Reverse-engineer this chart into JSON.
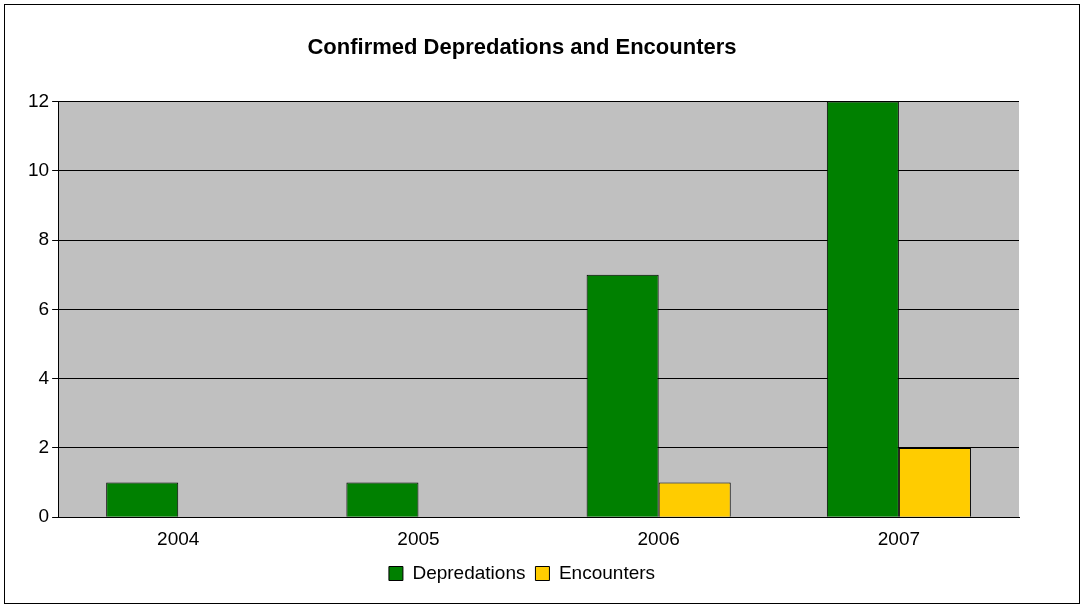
{
  "chart_data": {
    "type": "bar",
    "title": "Confirmed Depredations and Encounters",
    "categories": [
      "2004",
      "2005",
      "2006",
      "2007"
    ],
    "series": [
      {
        "name": "Depredations",
        "color": "#008000",
        "values": [
          1,
          1,
          7,
          12
        ]
      },
      {
        "name": "Encounters",
        "color": "#ffcc00",
        "values": [
          0,
          0,
          1,
          2
        ]
      }
    ],
    "ylim": [
      0,
      12
    ],
    "yticks": [
      0,
      2,
      4,
      6,
      8,
      10,
      12
    ],
    "grid": "y",
    "legend": "bottom"
  }
}
